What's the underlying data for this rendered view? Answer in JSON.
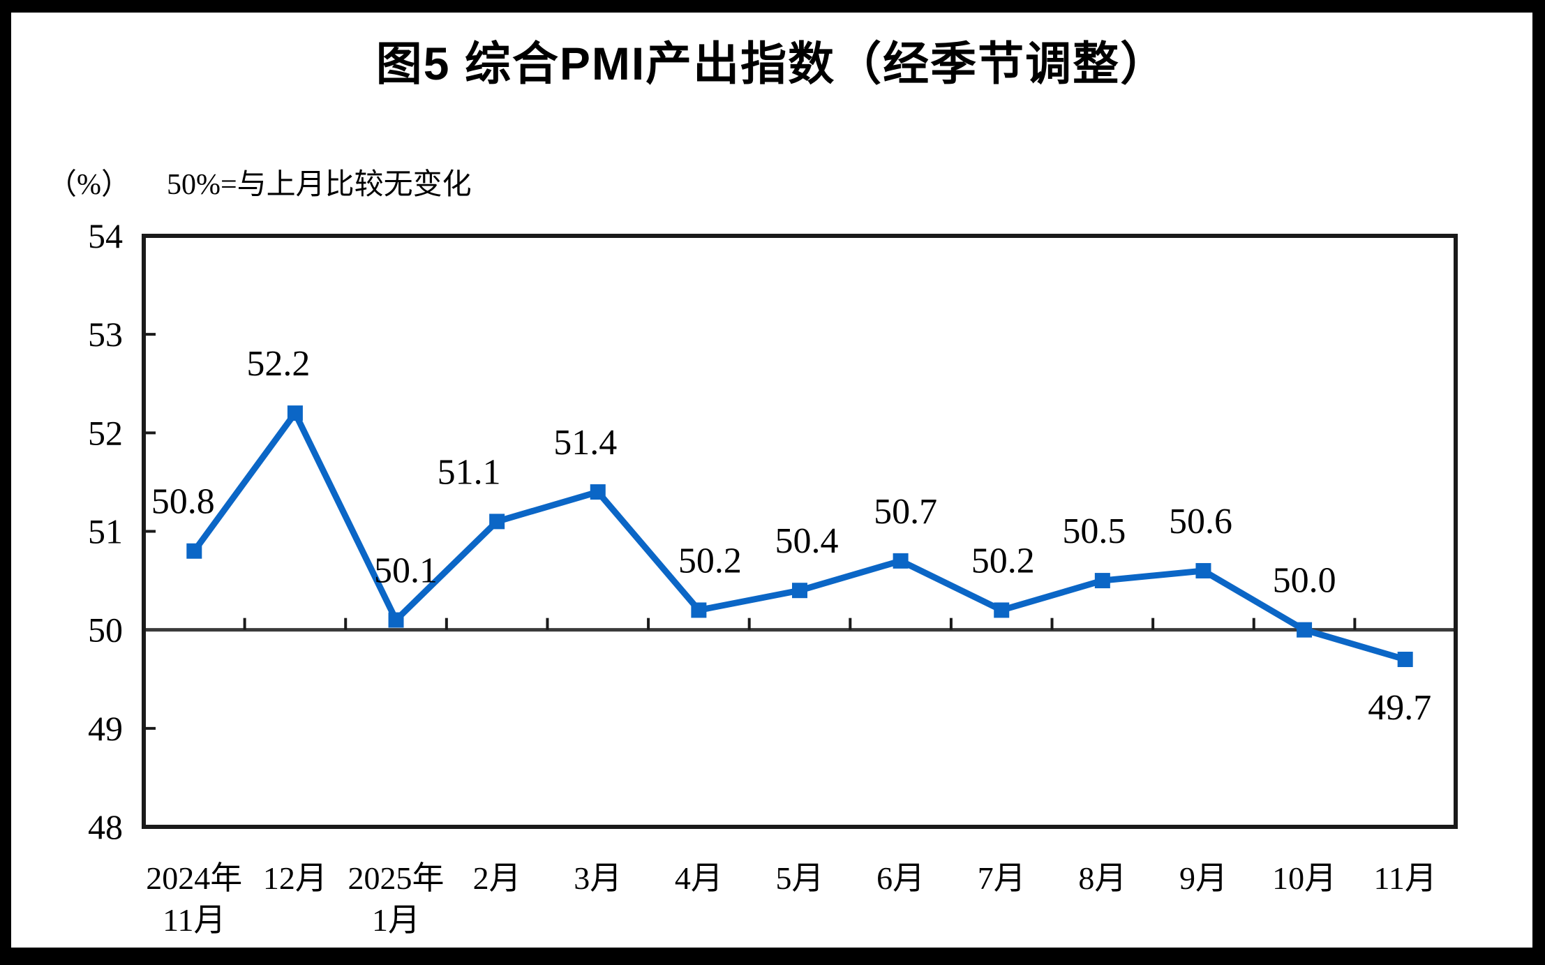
{
  "page": {
    "background": "#ffffff",
    "frame_color": "#000000"
  },
  "chart_data": {
    "type": "line",
    "title": "图5 综合PMI产出指数（经季节调整）",
    "unit_label": "（%）",
    "note": "50%=与上月比较无变化",
    "categories": [
      "2024年\n11月",
      "12月",
      "2025年\n1月",
      "2月",
      "3月",
      "4月",
      "5月",
      "6月",
      "7月",
      "8月",
      "9月",
      "10月",
      "11月"
    ],
    "series": [
      {
        "name": "综合PMI产出指数",
        "values": [
          50.8,
          52.2,
          50.1,
          51.1,
          51.4,
          50.2,
          50.4,
          50.7,
          50.2,
          50.5,
          50.6,
          50.0,
          49.7
        ]
      }
    ],
    "data_labels": [
      "50.8",
      "52.2",
      "50.1",
      "51.1",
      "51.4",
      "50.2",
      "50.4",
      "50.7",
      "50.2",
      "50.5",
      "50.6",
      "50.0",
      "49.7"
    ],
    "ylim": [
      48,
      54
    ],
    "yticks": [
      48,
      49,
      50,
      51,
      52,
      53,
      54
    ],
    "reference_line": 50,
    "grid": false,
    "legend": false,
    "line_color": "#0B66C6",
    "marker": "square",
    "axis_color": "#1a1a1a",
    "reference_line_color": "#3a3a3a",
    "label_color": "#000000"
  }
}
